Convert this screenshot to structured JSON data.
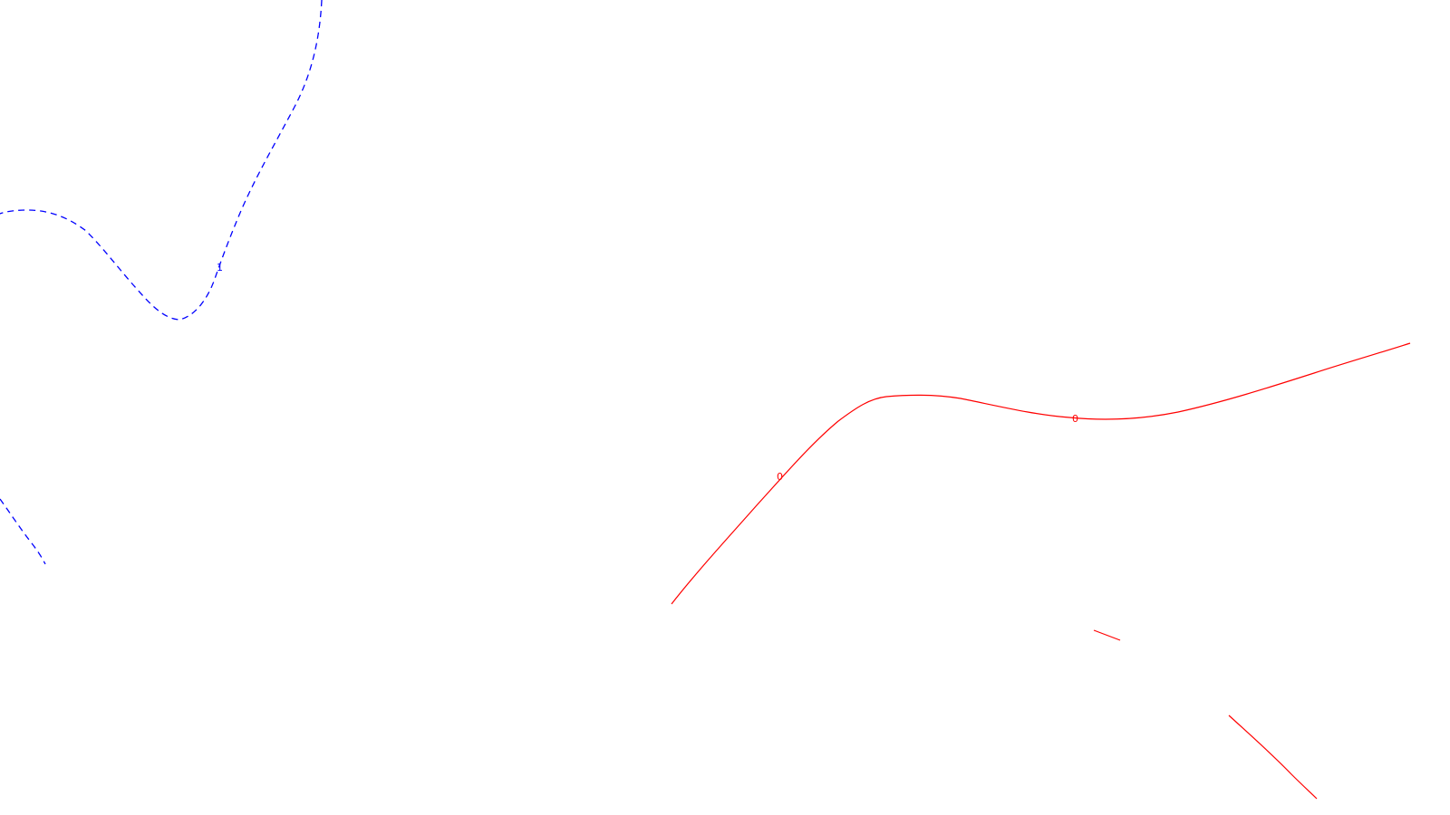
{
  "map": {
    "background_color": "#ffffff",
    "contours": [
      {
        "id": "blue-contour-upper",
        "color": "#0000ff",
        "style": "dashed",
        "label": "1"
      },
      {
        "id": "blue-contour-lower-left",
        "color": "#0000ff",
        "style": "dashed",
        "label": ""
      },
      {
        "id": "red-contour-main",
        "color": "#ff0000",
        "style": "solid",
        "labels": [
          "0",
          "0"
        ]
      },
      {
        "id": "red-segment-small",
        "color": "#ff0000",
        "style": "solid",
        "label": ""
      },
      {
        "id": "red-segment-bottom-right",
        "color": "#ff0000",
        "style": "solid",
        "label": ""
      }
    ]
  }
}
